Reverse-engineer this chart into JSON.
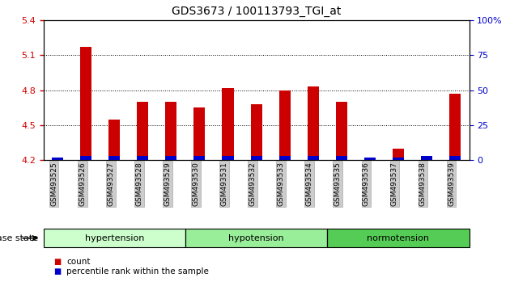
{
  "title": "GDS3673 / 100113793_TGI_at",
  "samples": [
    "GSM493525",
    "GSM493526",
    "GSM493527",
    "GSM493528",
    "GSM493529",
    "GSM493530",
    "GSM493531",
    "GSM493532",
    "GSM493533",
    "GSM493534",
    "GSM493535",
    "GSM493536",
    "GSM493537",
    "GSM493538",
    "GSM493539"
  ],
  "red_values": [
    4.21,
    5.17,
    4.55,
    4.7,
    4.7,
    4.65,
    4.82,
    4.68,
    4.8,
    4.83,
    4.7,
    4.21,
    4.3,
    4.22,
    4.77
  ],
  "blue_values": [
    2,
    3,
    3,
    3,
    3,
    3,
    3,
    3,
    3,
    3,
    3,
    2,
    2,
    3,
    3
  ],
  "ylim_left": [
    4.2,
    5.4
  ],
  "ylim_right": [
    0,
    100
  ],
  "yticks_left": [
    4.2,
    4.5,
    4.8,
    5.1,
    5.4
  ],
  "yticks_right": [
    0,
    25,
    50,
    75,
    100
  ],
  "groups": [
    {
      "label": "hypertension",
      "start": 0,
      "end": 5,
      "color": "#ccffcc"
    },
    {
      "label": "hypotension",
      "start": 5,
      "end": 10,
      "color": "#99ee99"
    },
    {
      "label": "normotension",
      "start": 10,
      "end": 15,
      "color": "#55cc55"
    }
  ],
  "group_label": "disease state",
  "legend_items": [
    {
      "label": "count",
      "color": "#cc0000"
    },
    {
      "label": "percentile rank within the sample",
      "color": "#0000cc"
    }
  ],
  "bar_width": 0.4,
  "red_color": "#cc0000",
  "blue_color": "#0000cc",
  "bg_color": "#ffffff",
  "tick_label_color_left": "#cc0000",
  "tick_label_color_right": "#0000cc",
  "xtick_bg_color": "#cccccc"
}
